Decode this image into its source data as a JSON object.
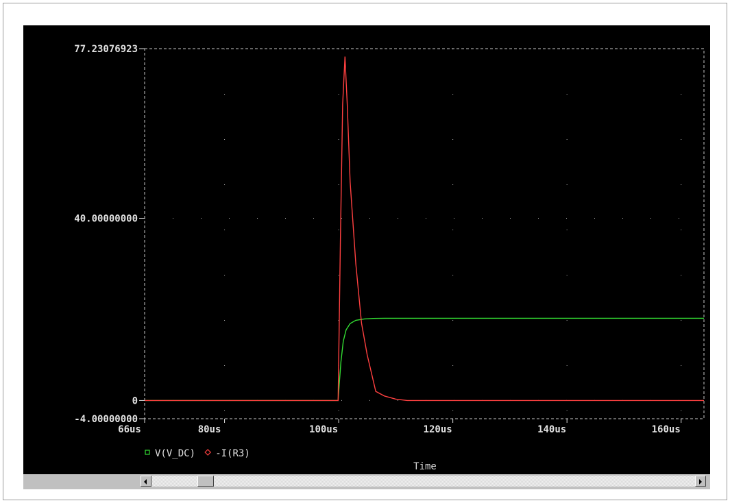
{
  "chart_data": {
    "type": "line",
    "title": "",
    "xlabel": "Time",
    "ylabel": "",
    "xlim": [
      66,
      164
    ],
    "ylim": [
      -4.0,
      77.23076923
    ],
    "x_ticks": [
      {
        "value": 66,
        "label": "66us"
      },
      {
        "value": 80,
        "label": "80us"
      },
      {
        "value": 100,
        "label": "100us"
      },
      {
        "value": 120,
        "label": "120us"
      },
      {
        "value": 140,
        "label": "140us"
      },
      {
        "value": 160,
        "label": "160us"
      }
    ],
    "y_ticks": [
      {
        "value": 77.23076923,
        "label": "77.23076923"
      },
      {
        "value": 40.0,
        "label": "40.00000000"
      },
      {
        "value": 0,
        "label": "0"
      },
      {
        "value": -4.0,
        "label": "-4.00000000"
      }
    ],
    "grid": true,
    "legend_position": "bottom-left",
    "series": [
      {
        "name": "V(V_DC)",
        "color": "#33dd33",
        "marker": "square",
        "x": [
          66,
          99.9,
          100.1,
          100.4,
          100.8,
          101.3,
          102.0,
          103.0,
          104.5,
          106.0,
          108.0,
          164
        ],
        "y": [
          0,
          0,
          3.5,
          8.5,
          13.0,
          15.5,
          16.9,
          17.6,
          17.9,
          18.0,
          18.05,
          18.05
        ]
      },
      {
        "name": "-I(R3)",
        "color": "#ff4040",
        "marker": "diamond",
        "x": [
          66,
          99.9,
          100.3,
          100.7,
          101.1,
          101.5,
          102.0,
          103.0,
          104.0,
          105.0,
          106.5,
          108.0,
          110.0,
          112.0,
          164
        ],
        "y": [
          0,
          0,
          35.0,
          65.0,
          75.5,
          65.0,
          48.0,
          30.0,
          17.0,
          10.0,
          2.0,
          1.0,
          0.3,
          0.0,
          0.0
        ]
      }
    ]
  }
}
